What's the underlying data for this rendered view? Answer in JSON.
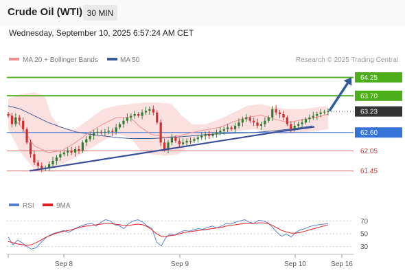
{
  "header": {
    "instrument": "Crude Oil (WTI)",
    "timeframe": "30 MIN",
    "datetime": "Wednesday, September 10, 2025 6:57:24 AM CET"
  },
  "legend": {
    "ma20_bb": "MA 20 + Bollinger Bands",
    "ma50": "MA 50",
    "research": "Research © 2025 Trading Central",
    "rsi": "RSI",
    "rsi_ma": "9MA"
  },
  "colors": {
    "bull_candle": "#2e7d32",
    "bear_candle": "#d32f2f",
    "ma20": "#ef8f8f",
    "bollinger_fill": "#fadada",
    "ma50": "#3a5b9a",
    "resistance": "#4caf1a",
    "support": "#e06a6a",
    "pivot": "#3673d8",
    "trendline": "#3a4d9a",
    "rsi": "#5b7fd6",
    "rsi_ma": "#e02020"
  },
  "chart_data": [
    {
      "type": "candlestick",
      "title": "Crude Oil (WTI)",
      "timeframe": "30 MIN",
      "ylim": [
        61.05,
        64.55
      ],
      "x_ticks": [
        "Sep 8",
        "Sep 9",
        "Sep 10",
        "Sep 16"
      ],
      "last_price": 63.23,
      "levels": [
        {
          "value": 64.25,
          "role": "resistance",
          "label": "64.25",
          "style": "solid-box"
        },
        {
          "value": 63.7,
          "role": "resistance",
          "label": "63.70",
          "style": "solid-box"
        },
        {
          "value": 63.23,
          "role": "last",
          "label": "63.23",
          "style": "dark-box"
        },
        {
          "value": 62.6,
          "role": "pivot",
          "label": "62.60",
          "style": "blue-box"
        },
        {
          "value": 62.05,
          "role": "support",
          "label": "62.05",
          "style": "text"
        },
        {
          "value": 61.45,
          "role": "support",
          "label": "61.45",
          "style": "text"
        }
      ],
      "trendline": [
        {
          "t": 43,
          "v": 61.45
        },
        {
          "t": 405,
          "v": 62.62
        },
        {
          "t": 458,
          "v": 62.77
        }
      ],
      "projection": {
        "from": {
          "t": 480,
          "v": 63.25
        },
        "to": {
          "t": 512,
          "v": 64.25
        }
      },
      "ma20": [
        {
          "t": 12,
          "v": 63.2
        },
        {
          "t": 30,
          "v": 62.8
        },
        {
          "t": 50,
          "v": 62.2
        },
        {
          "t": 70,
          "v": 62.0
        },
        {
          "t": 90,
          "v": 62.05
        },
        {
          "t": 110,
          "v": 62.3
        },
        {
          "t": 130,
          "v": 62.6
        },
        {
          "t": 150,
          "v": 62.85
        },
        {
          "t": 170,
          "v": 63.05
        },
        {
          "t": 190,
          "v": 63.05
        },
        {
          "t": 205,
          "v": 62.75
        },
        {
          "t": 220,
          "v": 62.55
        },
        {
          "t": 240,
          "v": 62.45
        },
        {
          "t": 260,
          "v": 62.5
        },
        {
          "t": 280,
          "v": 62.6
        },
        {
          "t": 300,
          "v": 62.68
        },
        {
          "t": 320,
          "v": 62.75
        },
        {
          "t": 340,
          "v": 62.92
        },
        {
          "t": 360,
          "v": 63.05
        },
        {
          "t": 380,
          "v": 63.12
        },
        {
          "t": 400,
          "v": 63.0
        },
        {
          "t": 420,
          "v": 62.9
        },
        {
          "t": 440,
          "v": 62.98
        },
        {
          "t": 460,
          "v": 63.05
        },
        {
          "t": 478,
          "v": 63.15
        }
      ],
      "bollinger_upper": [
        {
          "t": 12,
          "v": 63.6
        },
        {
          "t": 30,
          "v": 63.75
        },
        {
          "t": 50,
          "v": 63.8
        },
        {
          "t": 65,
          "v": 63.7
        },
        {
          "t": 75,
          "v": 63.1
        },
        {
          "t": 90,
          "v": 62.7
        },
        {
          "t": 110,
          "v": 62.7
        },
        {
          "t": 130,
          "v": 63.0
        },
        {
          "t": 150,
          "v": 63.3
        },
        {
          "t": 170,
          "v": 63.4
        },
        {
          "t": 190,
          "v": 63.45
        },
        {
          "t": 210,
          "v": 63.5
        },
        {
          "t": 230,
          "v": 63.5
        },
        {
          "t": 250,
          "v": 63.45
        },
        {
          "t": 265,
          "v": 63.1
        },
        {
          "t": 280,
          "v": 62.85
        },
        {
          "t": 300,
          "v": 62.85
        },
        {
          "t": 320,
          "v": 63.0
        },
        {
          "t": 340,
          "v": 63.2
        },
        {
          "t": 360,
          "v": 63.4
        },
        {
          "t": 380,
          "v": 63.45
        },
        {
          "t": 400,
          "v": 63.35
        },
        {
          "t": 420,
          "v": 63.3
        },
        {
          "t": 440,
          "v": 63.3
        },
        {
          "t": 460,
          "v": 63.35
        },
        {
          "t": 478,
          "v": 63.4
        }
      ],
      "bollinger_lower": [
        {
          "t": 12,
          "v": 62.7
        },
        {
          "t": 30,
          "v": 62.0
        },
        {
          "t": 50,
          "v": 61.5
        },
        {
          "t": 70,
          "v": 61.5
        },
        {
          "t": 90,
          "v": 61.65
        },
        {
          "t": 110,
          "v": 61.85
        },
        {
          "t": 130,
          "v": 62.1
        },
        {
          "t": 150,
          "v": 62.35
        },
        {
          "t": 170,
          "v": 62.55
        },
        {
          "t": 190,
          "v": 62.45
        },
        {
          "t": 205,
          "v": 62.05
        },
        {
          "t": 220,
          "v": 61.95
        },
        {
          "t": 240,
          "v": 61.9
        },
        {
          "t": 260,
          "v": 61.95
        },
        {
          "t": 275,
          "v": 62.2
        },
        {
          "t": 290,
          "v": 62.45
        },
        {
          "t": 310,
          "v": 62.5
        },
        {
          "t": 330,
          "v": 62.6
        },
        {
          "t": 350,
          "v": 62.65
        },
        {
          "t": 370,
          "v": 62.7
        },
        {
          "t": 390,
          "v": 62.62
        },
        {
          "t": 410,
          "v": 62.55
        },
        {
          "t": 430,
          "v": 62.58
        },
        {
          "t": 450,
          "v": 62.62
        },
        {
          "t": 478,
          "v": 62.7
        }
      ],
      "ma50": [
        {
          "t": 12,
          "v": 63.4
        },
        {
          "t": 30,
          "v": 63.3
        },
        {
          "t": 50,
          "v": 63.1
        },
        {
          "t": 70,
          "v": 62.9
        },
        {
          "t": 90,
          "v": 62.75
        },
        {
          "t": 110,
          "v": 62.62
        },
        {
          "t": 130,
          "v": 62.55
        },
        {
          "t": 150,
          "v": 62.5
        },
        {
          "t": 170,
          "v": 62.45
        },
        {
          "t": 190,
          "v": 62.42
        },
        {
          "t": 220,
          "v": 62.42
        },
        {
          "t": 250,
          "v": 62.45
        },
        {
          "t": 280,
          "v": 62.5
        },
        {
          "t": 310,
          "v": 62.55
        },
        {
          "t": 340,
          "v": 62.58
        },
        {
          "t": 370,
          "v": 62.6
        },
        {
          "t": 400,
          "v": 62.65
        },
        {
          "t": 430,
          "v": 62.72
        },
        {
          "t": 455,
          "v": 62.8
        }
      ],
      "candles_close": [
        63.1,
        62.85,
        63.05,
        62.95,
        62.7,
        62.3,
        61.95,
        61.7,
        61.6,
        61.5,
        61.55,
        61.65,
        61.75,
        61.85,
        61.95,
        62.0,
        62.05,
        62.0,
        62.1,
        62.05,
        62.3,
        62.4,
        62.5,
        62.6,
        62.62,
        62.6,
        62.62,
        62.65,
        62.62,
        62.75,
        62.85,
        62.95,
        63.05,
        63.1,
        63.15,
        63.1,
        63.2,
        63.25,
        63.3,
        63.2,
        62.9,
        62.3,
        62.1,
        62.3,
        62.45,
        62.35,
        62.25,
        62.3,
        62.35,
        62.35,
        62.4,
        62.45,
        62.5,
        62.55,
        62.5,
        62.55,
        62.6,
        62.65,
        62.7,
        62.75,
        62.7,
        62.8,
        62.9,
        63.0,
        63.05,
        62.95,
        62.9,
        62.8,
        62.85,
        62.95,
        63.05,
        63.3,
        63.2,
        63.15,
        63.05,
        62.85,
        62.7,
        62.8,
        62.85,
        62.9,
        63.0,
        63.05,
        63.1,
        63.15,
        63.2,
        63.22,
        63.23
      ],
      "candle_span": [
        12,
        478
      ]
    },
    {
      "type": "line",
      "title": "RSI",
      "ylim": [
        20,
        80
      ],
      "y_ticks": [
        70,
        50,
        30
      ],
      "series": [
        {
          "name": "RSI",
          "values": [
            45,
            33,
            40,
            36,
            30,
            26,
            28,
            36,
            43,
            48,
            51,
            53,
            55,
            52,
            56,
            60,
            63,
            65,
            66,
            62,
            68,
            72,
            70,
            64,
            62,
            58,
            66,
            70,
            72,
            68,
            62,
            58,
            37,
            31,
            44,
            50,
            48,
            52,
            55,
            54,
            56,
            58,
            57,
            60,
            62,
            59,
            62,
            66,
            65,
            68,
            70,
            72,
            68,
            66,
            71,
            70,
            67,
            60,
            52,
            46,
            50,
            45,
            52,
            56,
            58,
            61,
            63,
            64,
            65,
            66
          ]
        },
        {
          "name": "9MA",
          "values": [
            38,
            36,
            34,
            33,
            32,
            33,
            36,
            40,
            44,
            47,
            50,
            52,
            54,
            55,
            57,
            59,
            61,
            62,
            63,
            64,
            65,
            66,
            66,
            65,
            64,
            63,
            63,
            64,
            65,
            64,
            61,
            56,
            50,
            46,
            46,
            47,
            48,
            50,
            52,
            53,
            54,
            55,
            56,
            57,
            58,
            59,
            60,
            62,
            63,
            64,
            65,
            66,
            66,
            66,
            67,
            67,
            66,
            63,
            59,
            55,
            53,
            51,
            51,
            52,
            54,
            56,
            58,
            60,
            62,
            64
          ]
        }
      ]
    }
  ]
}
